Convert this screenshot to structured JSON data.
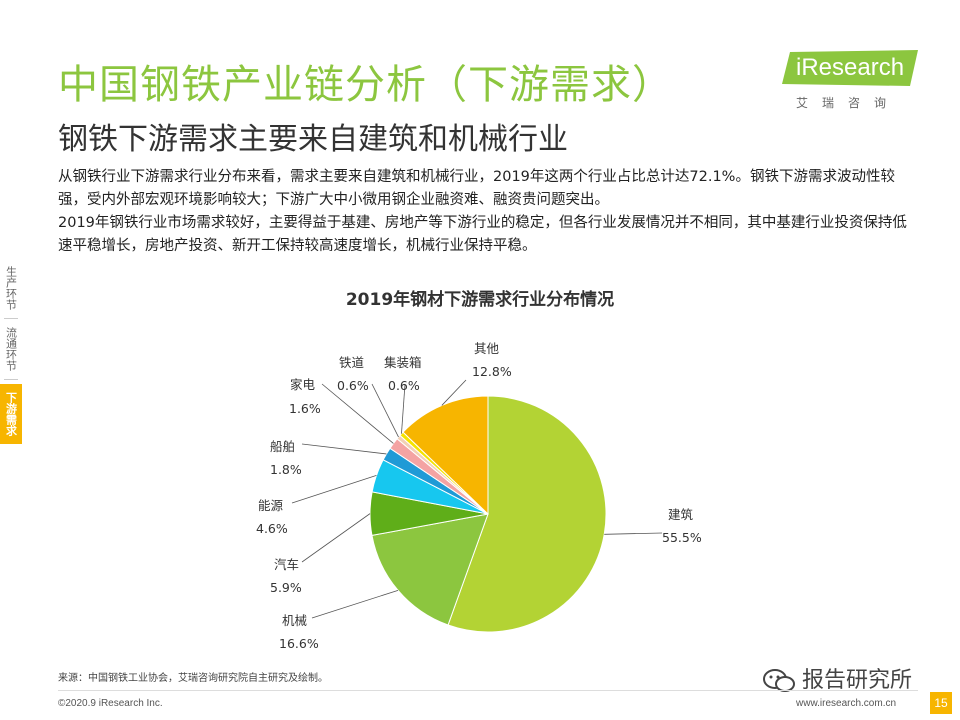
{
  "header": {
    "title": "中国钢铁产业链分析（下游需求）",
    "subtitle": "钢铁下游需求主要来自建筑和机械行业"
  },
  "logo": {
    "brand": "iResearch",
    "sub": "艾瑞咨询"
  },
  "body": {
    "paragraph1": "从钢铁行业下游需求行业分布来看，需求主要来自建筑和机械行业，2019年这两个行业占比总计达72.1%。钢铁下游需求波动性较强，受内外部宏观环境影响较大；下游广大中小微用钢企业融资难、融资贵问题突出。",
    "paragraph2": " 2019年钢铁行业市场需求较好，主要得益于基建、房地产等下游行业的稳定，但各行业发展情况并不相同，其中基建行业投资保持低速平稳增长，房地产投资、新开工保持较高速度增长，机械行业保持平稳。"
  },
  "side_nav": [
    {
      "label": "生产环节",
      "active": false
    },
    {
      "label": "流通环节",
      "active": false
    },
    {
      "label": "下游需求",
      "active": true
    }
  ],
  "chart_data": {
    "type": "pie",
    "title": "2019年钢材下游需求行业分布情况",
    "slices": [
      {
        "name": "建筑",
        "value": 55.5,
        "value_label": "55.5%",
        "color": "#b3d334"
      },
      {
        "name": "机械",
        "value": 16.6,
        "value_label": "16.6%",
        "color": "#8cc63f"
      },
      {
        "name": "汽车",
        "value": 5.9,
        "value_label": "5.9%",
        "color": "#5fae19"
      },
      {
        "name": "能源",
        "value": 4.6,
        "value_label": "4.6%",
        "color": "#17c7ef"
      },
      {
        "name": "船舶",
        "value": 1.8,
        "value_label": "1.8%",
        "color": "#1f9ad6"
      },
      {
        "name": "家电",
        "value": 1.6,
        "value_label": "1.6%",
        "color": "#f4a3a3"
      },
      {
        "name": "铁道",
        "value": 0.6,
        "value_label": "0.6%",
        "color": "#f2d0b5"
      },
      {
        "name": "集装箱",
        "value": 0.6,
        "value_label": "0.6%",
        "color": "#f5e400"
      },
      {
        "name": "其他",
        "value": 12.8,
        "value_label": "12.8%",
        "color": "#f7b500"
      }
    ]
  },
  "footer": {
    "source": "来源：中国钢铁工业协会，艾瑞咨询研究院自主研究及绘制。",
    "copyright": "©2020.9 iResearch Inc.",
    "website": "www.iresearch.com.cn",
    "page": "15",
    "watermark": "报告研究所"
  },
  "colors": {
    "accent_green": "#8cc63f",
    "accent_orange": "#f7b500"
  }
}
